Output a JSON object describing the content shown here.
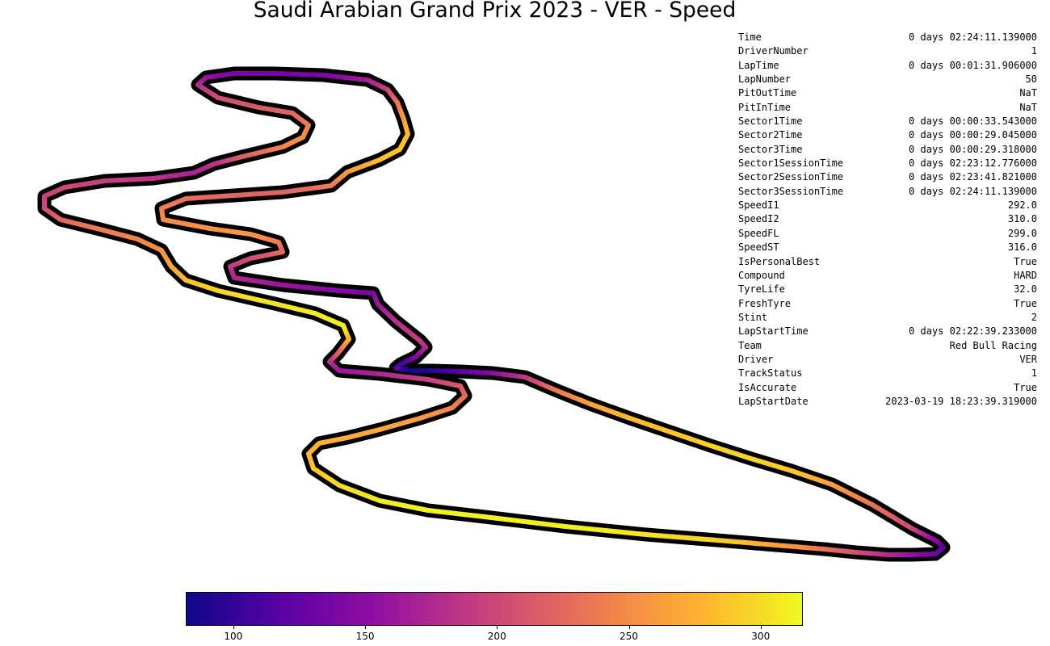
{
  "title": "Saudi Arabian Grand Prix 2023 - VER - Speed",
  "info_table": [
    {
      "key": "Time",
      "value": "0 days 02:24:11.139000"
    },
    {
      "key": "DriverNumber",
      "value": "1"
    },
    {
      "key": "LapTime",
      "value": "0 days 00:01:31.906000"
    },
    {
      "key": "LapNumber",
      "value": "50"
    },
    {
      "key": "PitOutTime",
      "value": "NaT"
    },
    {
      "key": "PitInTime",
      "value": "NaT"
    },
    {
      "key": "Sector1Time",
      "value": "0 days 00:00:33.543000"
    },
    {
      "key": "Sector2Time",
      "value": "0 days 00:00:29.045000"
    },
    {
      "key": "Sector3Time",
      "value": "0 days 00:00:29.318000"
    },
    {
      "key": "Sector1SessionTime",
      "value": "0 days 02:23:12.776000"
    },
    {
      "key": "Sector2SessionTime",
      "value": "0 days 02:23:41.821000"
    },
    {
      "key": "Sector3SessionTime",
      "value": "0 days 02:24:11.139000"
    },
    {
      "key": "SpeedI1",
      "value": "292.0"
    },
    {
      "key": "SpeedI2",
      "value": "310.0"
    },
    {
      "key": "SpeedFL",
      "value": "299.0"
    },
    {
      "key": "SpeedST",
      "value": "316.0"
    },
    {
      "key": "IsPersonalBest",
      "value": "True"
    },
    {
      "key": "Compound",
      "value": "HARD"
    },
    {
      "key": "TyreLife",
      "value": "32.0"
    },
    {
      "key": "FreshTyre",
      "value": "True"
    },
    {
      "key": "Stint",
      "value": "2"
    },
    {
      "key": "LapStartTime",
      "value": "0 days 02:22:39.233000"
    },
    {
      "key": "Team",
      "value": "Red Bull Racing"
    },
    {
      "key": "Driver",
      "value": "VER"
    },
    {
      "key": "TrackStatus",
      "value": "1"
    },
    {
      "key": "IsAccurate",
      "value": "True"
    },
    {
      "key": "LapStartDate",
      "value": "2023-03-19 18:23:39.319000"
    }
  ],
  "chart_data": {
    "type": "line",
    "colormap": "plasma",
    "colorbar": {
      "min": 82,
      "max": 316,
      "ticks": [
        100,
        150,
        200,
        250,
        300
      ]
    },
    "track": {
      "note": "",
      "points": [
        [
          490,
          456,
          120
        ],
        [
          510,
          459,
          85
        ],
        [
          535,
          459,
          95
        ],
        [
          570,
          460,
          120
        ],
        [
          610,
          462,
          150
        ],
        [
          650,
          467,
          185
        ],
        [
          690,
          484,
          235
        ],
        [
          730,
          500,
          265
        ],
        [
          780,
          518,
          280
        ],
        [
          830,
          535,
          288
        ],
        [
          880,
          552,
          294
        ],
        [
          930,
          568,
          298
        ],
        [
          980,
          583,
          290
        ],
        [
          1030,
          600,
          265
        ],
        [
          1080,
          625,
          235
        ],
        [
          1130,
          655,
          200
        ],
        [
          1160,
          670,
          150
        ],
        [
          1168,
          678,
          120
        ],
        [
          1158,
          686,
          130
        ],
        [
          1130,
          687,
          155
        ],
        [
          1100,
          687,
          175
        ],
        [
          1060,
          684,
          205
        ],
        [
          1020,
          680,
          230
        ],
        [
          960,
          675,
          265
        ],
        [
          900,
          670,
          290
        ],
        [
          800,
          662,
          305
        ],
        [
          700,
          652,
          310
        ],
        [
          600,
          640,
          312
        ],
        [
          530,
          632,
          312
        ],
        [
          470,
          620,
          310
        ],
        [
          420,
          601,
          300
        ],
        [
          388,
          580,
          290
        ],
        [
          382,
          562,
          282
        ],
        [
          395,
          549,
          276
        ],
        [
          430,
          542,
          272
        ],
        [
          470,
          532,
          270
        ],
        [
          520,
          518,
          262
        ],
        [
          560,
          505,
          245
        ],
        [
          576,
          490,
          230
        ],
        [
          570,
          478,
          215
        ],
        [
          530,
          470,
          195
        ],
        [
          470,
          463,
          175
        ],
        [
          420,
          459,
          160
        ],
        [
          408,
          448,
          175
        ],
        [
          418,
          438,
          210
        ],
        [
          432,
          420,
          270
        ],
        [
          425,
          403,
          310
        ],
        [
          390,
          388,
          310
        ],
        [
          340,
          376,
          305
        ],
        [
          270,
          360,
          298
        ],
        [
          230,
          347,
          285
        ],
        [
          212,
          330,
          270
        ],
        [
          200,
          310,
          255
        ],
        [
          170,
          296,
          245
        ],
        [
          120,
          283,
          240
        ],
        [
          75,
          272,
          225
        ],
        [
          55,
          258,
          205
        ],
        [
          55,
          243,
          195
        ],
        [
          80,
          232,
          200
        ],
        [
          130,
          224,
          195
        ],
        [
          190,
          221,
          185
        ],
        [
          240,
          214,
          170
        ],
        [
          265,
          203,
          180
        ],
        [
          300,
          194,
          215
        ],
        [
          350,
          182,
          245
        ],
        [
          375,
          170,
          255
        ],
        [
          382,
          155,
          245
        ],
        [
          362,
          140,
          225
        ],
        [
          320,
          133,
          215
        ],
        [
          270,
          121,
          205
        ],
        [
          245,
          105,
          185
        ],
        [
          255,
          96,
          160
        ],
        [
          290,
          91,
          140
        ],
        [
          340,
          91,
          135
        ],
        [
          400,
          93,
          140
        ],
        [
          455,
          99,
          165
        ],
        [
          480,
          111,
          195
        ],
        [
          492,
          127,
          230
        ],
        [
          500,
          148,
          262
        ],
        [
          505,
          166,
          280
        ],
        [
          495,
          185,
          288
        ],
        [
          470,
          198,
          285
        ],
        [
          430,
          213,
          262
        ],
        [
          410,
          230,
          240
        ],
        [
          350,
          238,
          222
        ],
        [
          290,
          242,
          222
        ],
        [
          230,
          246,
          230
        ],
        [
          200,
          258,
          240
        ],
        [
          202,
          272,
          250
        ],
        [
          260,
          283,
          255
        ],
        [
          310,
          290,
          260
        ],
        [
          345,
          300,
          240
        ],
        [
          350,
          312,
          225
        ],
        [
          310,
          320,
          205
        ],
        [
          285,
          330,
          190
        ],
        [
          290,
          344,
          175
        ],
        [
          350,
          353,
          160
        ],
        [
          420,
          360,
          148
        ],
        [
          462,
          363,
          140
        ],
        [
          468,
          377,
          160
        ],
        [
          490,
          398,
          180
        ],
        [
          520,
          422,
          190
        ],
        [
          527,
          430,
          180
        ],
        [
          515,
          442,
          150
        ],
        [
          496,
          451,
          110
        ],
        [
          490,
          456,
          120
        ]
      ]
    }
  }
}
